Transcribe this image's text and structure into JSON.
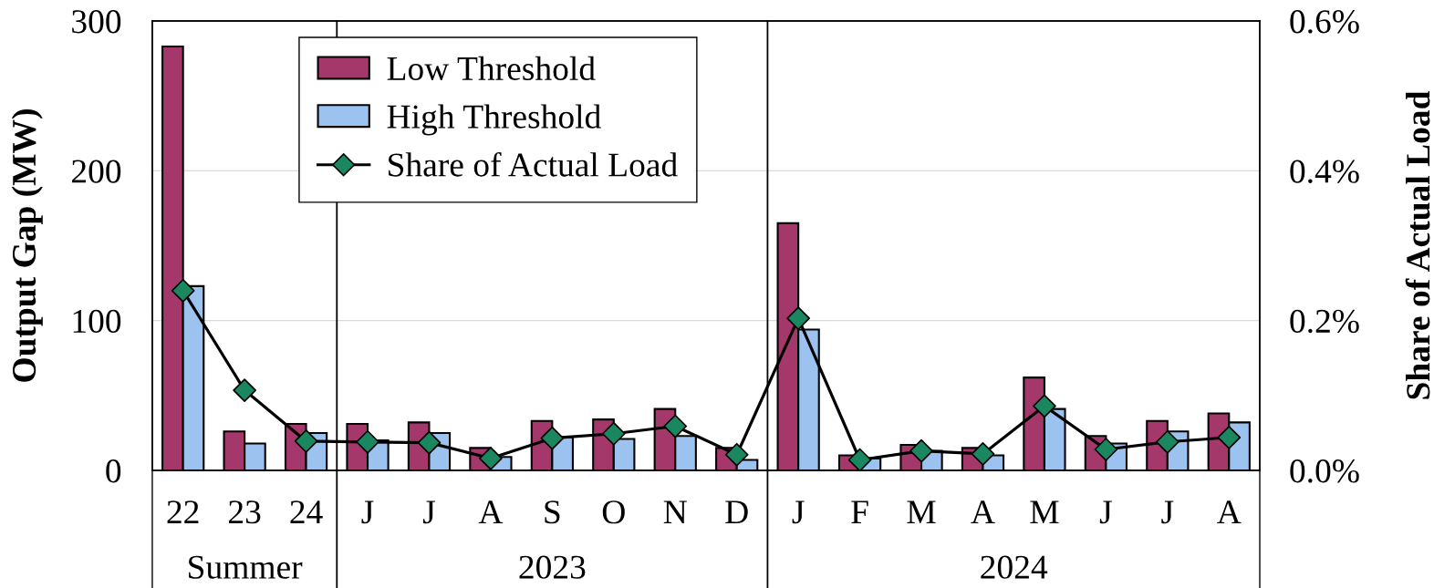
{
  "chart_data": {
    "type": "bar",
    "categories": [
      "22",
      "23",
      "24",
      "J",
      "J",
      "A",
      "S",
      "O",
      "N",
      "D",
      "J",
      "F",
      "M",
      "A",
      "M",
      "J",
      "J",
      "A"
    ],
    "series": [
      {
        "name": "Low Threshold",
        "color": "#a5386b",
        "values": [
          283,
          26,
          31,
          31,
          32,
          15,
          33,
          34,
          41,
          15,
          165,
          10,
          17,
          15,
          62,
          23,
          33,
          38
        ]
      },
      {
        "name": "High Threshold",
        "color": "#9cc2f0",
        "values": [
          123,
          18,
          25,
          20,
          25,
          9,
          22,
          21,
          23,
          7,
          94,
          8,
          13,
          10,
          41,
          18,
          26,
          32
        ]
      },
      {
        "name": "Share of Actual Load",
        "type": "line",
        "axis": "y2",
        "color": "#000000",
        "colors": [
          "#1b8760",
          "#1b8760",
          "#1b8760",
          "#1b8760",
          "#1b8760",
          "#1b8760",
          "#1b8760",
          "#1b8760",
          "#1b8760",
          "#1b8760",
          "#1b8760",
          "#1b8760",
          "#1b8760",
          "#1b8760",
          "#1b8760",
          "#1b8760",
          "#1b8760",
          "#1b8760"
        ],
        "marker": "diamond",
        "line_style": "solid",
        "values": [
          0.24,
          0.107,
          0.039,
          0.038,
          0.037,
          0.016,
          0.043,
          0.049,
          0.059,
          0.021,
          0.203,
          0.014,
          0.026,
          0.022,
          0.086,
          0.028,
          0.038,
          0.044
        ]
      }
    ],
    "ylabel": "Output Gap (MW)",
    "y2label": "Share of Actual Load",
    "ylim": [
      0,
      300
    ],
    "yticks": [
      0,
      100,
      200,
      300
    ],
    "y2lim": [
      0,
      0.6
    ],
    "y2ticks": [
      {
        "value": 0,
        "label": "0.0%"
      },
      {
        "value": 0.2,
        "label": "0.2%"
      },
      {
        "value": 0.4,
        "label": "0.4%"
      },
      {
        "value": 0.6,
        "label": "0.6%"
      }
    ],
    "grid": "y",
    "legend": "top left",
    "annotations": [
      "Summer",
      "2023",
      "2024"
    ]
  }
}
